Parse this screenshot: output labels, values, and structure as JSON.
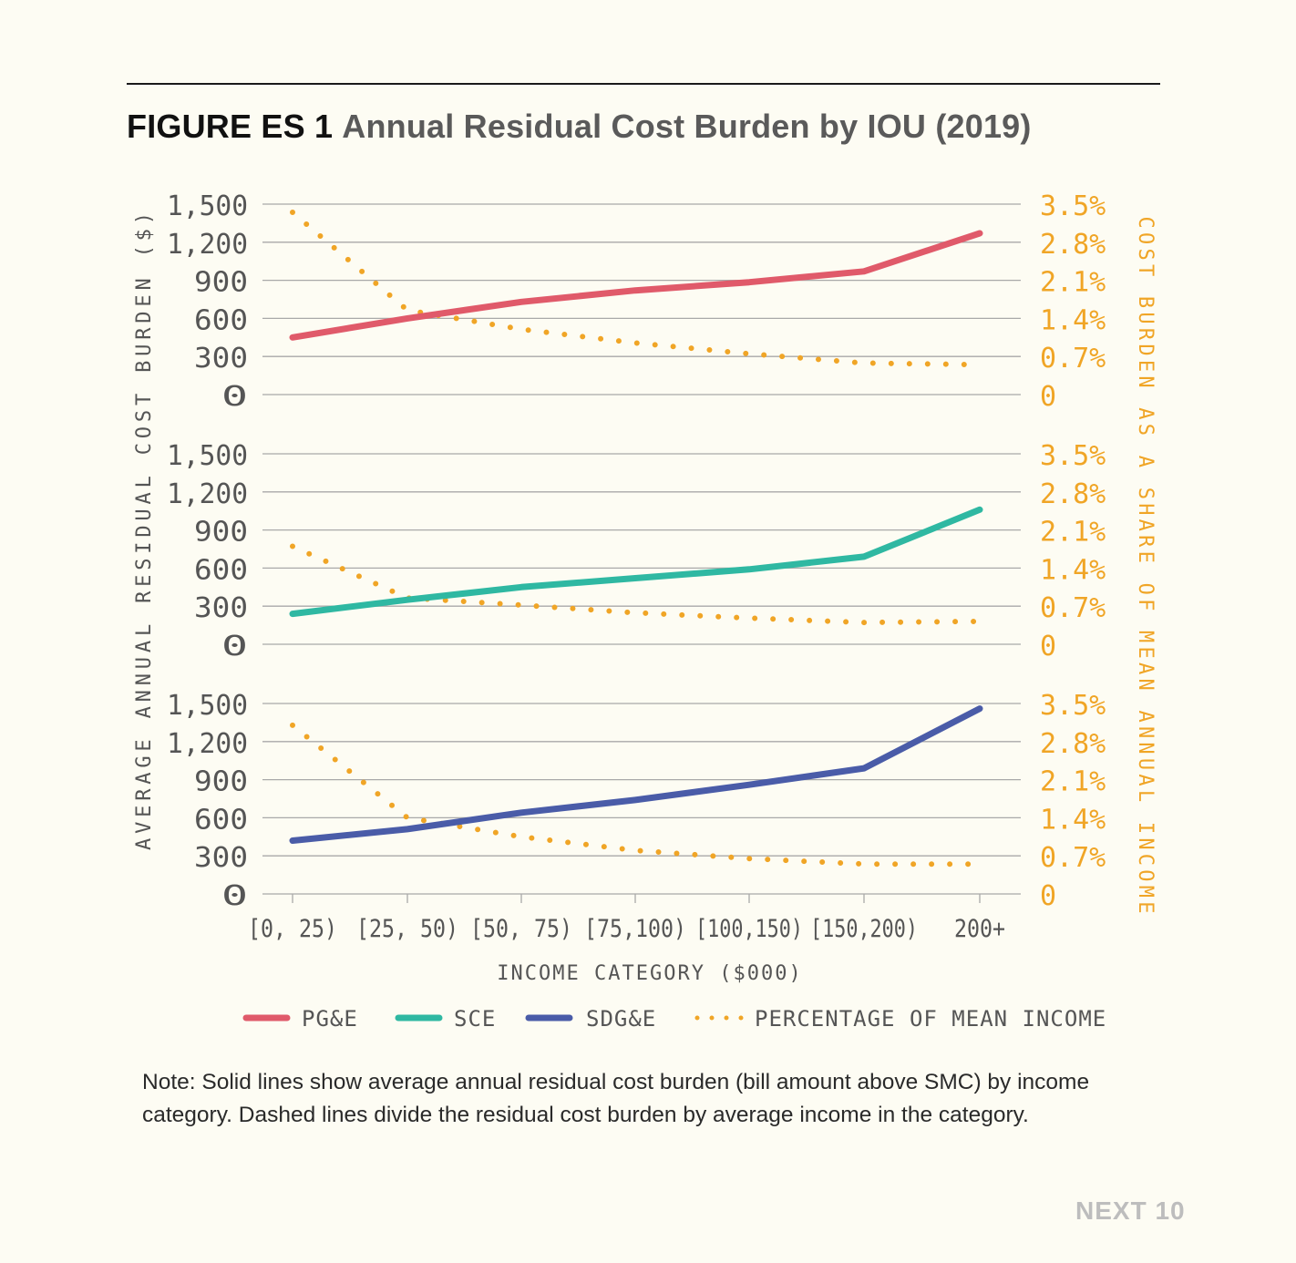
{
  "header": {
    "figure_label": "FIGURE ES 1",
    "figure_title": "Annual Residual Cost Burden by IOU (2019)"
  },
  "chart_data": {
    "type": "line",
    "categories": [
      "[0, 25)",
      "[25, 50)",
      "[50, 75)",
      "[75,100)",
      "[100,150)",
      "[150,200)",
      "200+"
    ],
    "xlabel": "INCOME CATEGORY ($000)",
    "ylabel_left": "AVERAGE ANNUAL RESIDUAL COST BURDEN ($)",
    "ylabel_right": "COST BURDEN AS A SHARE OF MEAN ANNUAL INCOME",
    "ylim_left": [
      0,
      1500
    ],
    "ylim_right": [
      0,
      3.5
    ],
    "left_ticks": [
      "1,500",
      "1,200",
      "900",
      "600",
      "300",
      "0"
    ],
    "right_ticks": [
      "3.5%",
      "2.8%",
      "2.1%",
      "1.4%",
      "0.7%",
      "0"
    ],
    "grid": true,
    "panels": [
      {
        "series": "PG&E",
        "color": "#e05a6a",
        "cost": [
          450,
          600,
          730,
          820,
          885,
          970,
          1270
        ],
        "share": [
          3.35,
          1.55,
          1.2,
          0.95,
          0.75,
          0.58,
          0.55
        ]
      },
      {
        "series": "SCE",
        "color": "#2fb8a2",
        "cost": [
          240,
          350,
          450,
          520,
          590,
          690,
          1060
        ],
        "share": [
          1.8,
          0.85,
          0.72,
          0.58,
          0.48,
          0.4,
          0.42
        ]
      },
      {
        "series": "SDG&E",
        "color": "#4a5ca8",
        "cost": [
          420,
          510,
          640,
          740,
          860,
          990,
          1460
        ],
        "share": [
          3.1,
          1.4,
          1.05,
          0.8,
          0.65,
          0.55,
          0.55
        ]
      }
    ],
    "share_color": "#f0a526",
    "legend": {
      "position": "bottom",
      "items": [
        {
          "label": "PG&E",
          "color": "#e05a6a",
          "style": "solid"
        },
        {
          "label": "SCE",
          "color": "#2fb8a2",
          "style": "solid"
        },
        {
          "label": "SDG&E",
          "color": "#4a5ca8",
          "style": "solid"
        },
        {
          "label": "PERCENTAGE OF MEAN INCOME",
          "color": "#f0a526",
          "style": "dotted"
        }
      ]
    }
  },
  "note": "Note: Solid lines show average annual residual cost burden (bill amount above SMC) by income category. Dashed lines divide the residual cost burden by average income in the category.",
  "footer": {
    "brand": "NEXT 10"
  }
}
